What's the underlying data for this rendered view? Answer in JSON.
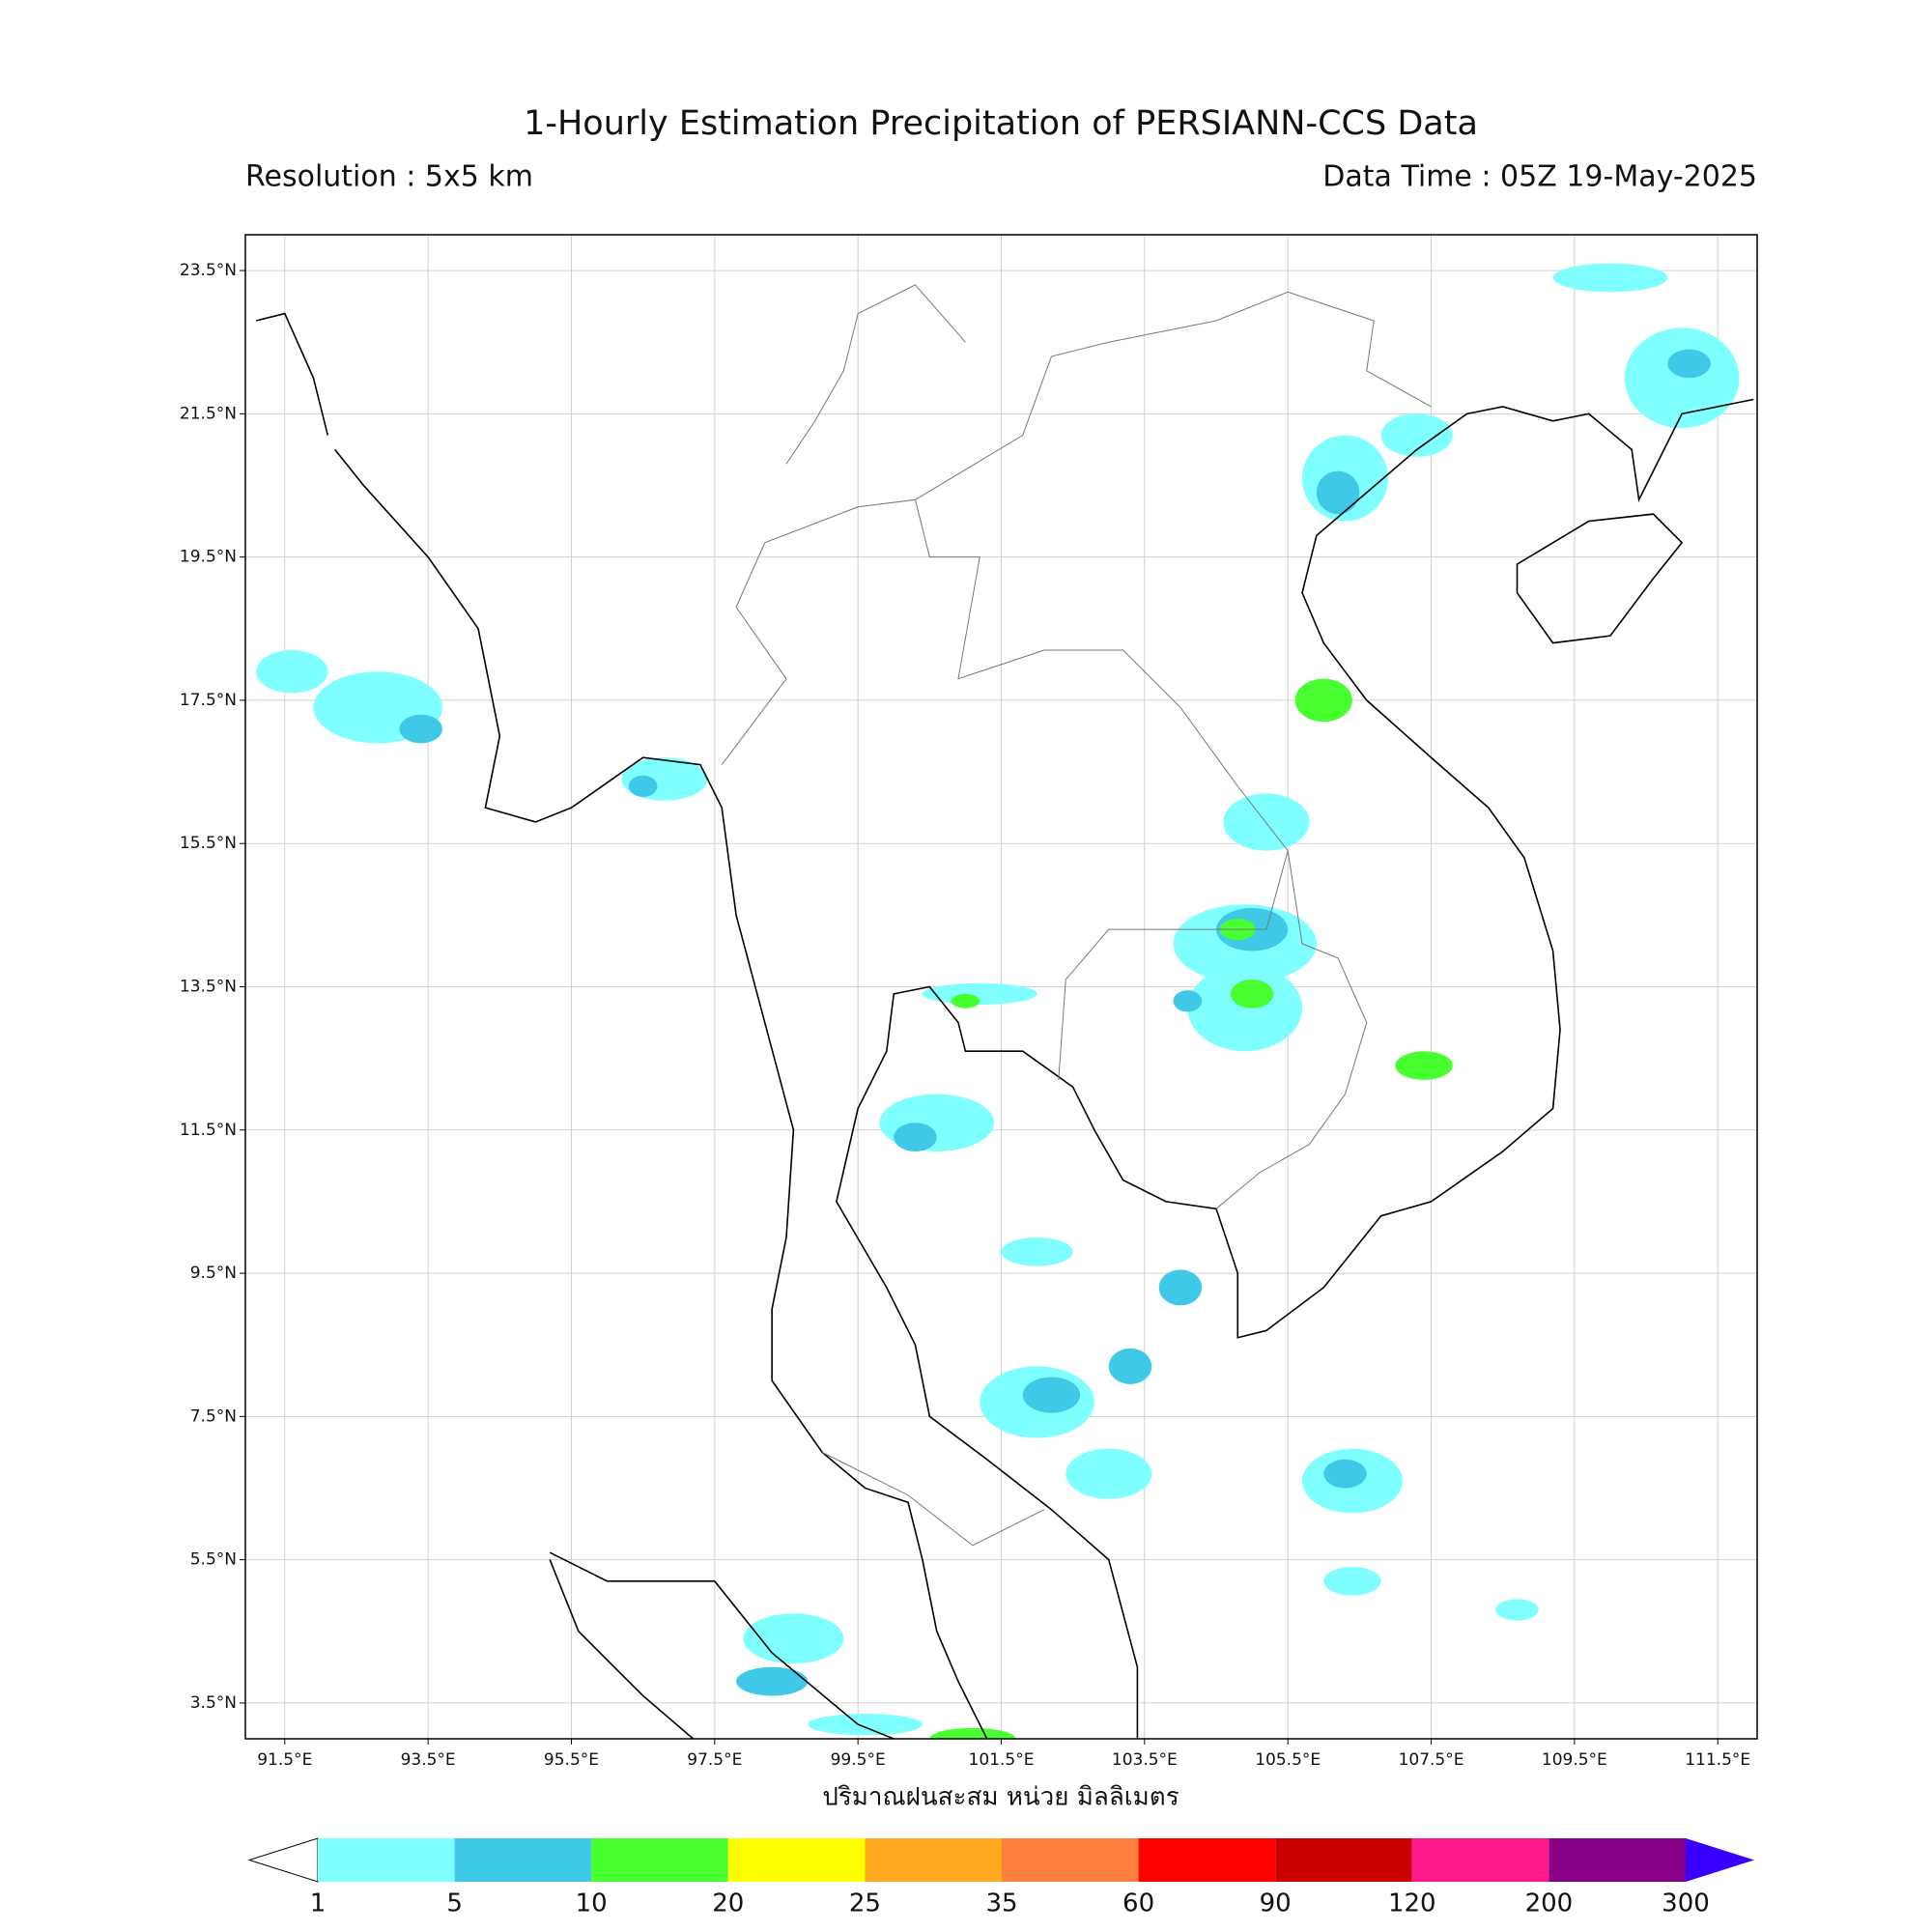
{
  "title": "1-Hourly Estimation Precipitation of PERSIANN-CCS Data",
  "resolution": "Resolution : 5x5 km",
  "data_time": "Data Time : 05Z 19-May-2025",
  "map": {
    "xlim": [
      90.95,
      112.05
    ],
    "ylim": [
      3.0,
      24.0
    ],
    "grid": true,
    "xticks": [
      {
        "value": 91.5,
        "label": "91.5°E"
      },
      {
        "value": 93.5,
        "label": "93.5°E"
      },
      {
        "value": 95.5,
        "label": "95.5°E"
      },
      {
        "value": 97.5,
        "label": "97.5°E"
      },
      {
        "value": 99.5,
        "label": "99.5°E"
      },
      {
        "value": 101.5,
        "label": "101.5°E"
      },
      {
        "value": 103.5,
        "label": "103.5°E"
      },
      {
        "value": 105.5,
        "label": "105.5°E"
      },
      {
        "value": 107.5,
        "label": "107.5°E"
      },
      {
        "value": 109.5,
        "label": "109.5°E"
      },
      {
        "value": 111.5,
        "label": "111.5°E"
      }
    ],
    "yticks": [
      {
        "value": 3.5,
        "label": "3.5°N"
      },
      {
        "value": 5.5,
        "label": "5.5°N"
      },
      {
        "value": 7.5,
        "label": "7.5°N"
      },
      {
        "value": 9.5,
        "label": "9.5°N"
      },
      {
        "value": 11.5,
        "label": "11.5°N"
      },
      {
        "value": 13.5,
        "label": "13.5°N"
      },
      {
        "value": 15.5,
        "label": "15.5°N"
      },
      {
        "value": 17.5,
        "label": "17.5°N"
      },
      {
        "value": 19.5,
        "label": "19.5°N"
      },
      {
        "value": 21.5,
        "label": "21.5°N"
      },
      {
        "value": 23.5,
        "label": "23.5°N"
      }
    ],
    "xlabel": "ปริมาณฝนสะสม หน่วย มิลลิเมตร"
  },
  "colorbar": {
    "levels": [
      1,
      5,
      10,
      20,
      25,
      35,
      60,
      90,
      120,
      200,
      300
    ],
    "colors": [
      "#7fffff",
      "#3fc8e8",
      "#48ff30",
      "#ffff00",
      "#ffa820",
      "#ff7f3f",
      "#ff0000",
      "#cc0000",
      "#ff1a8c",
      "#880088"
    ],
    "under_color": "#ffffff",
    "over_color": "#3a00ff"
  }
}
